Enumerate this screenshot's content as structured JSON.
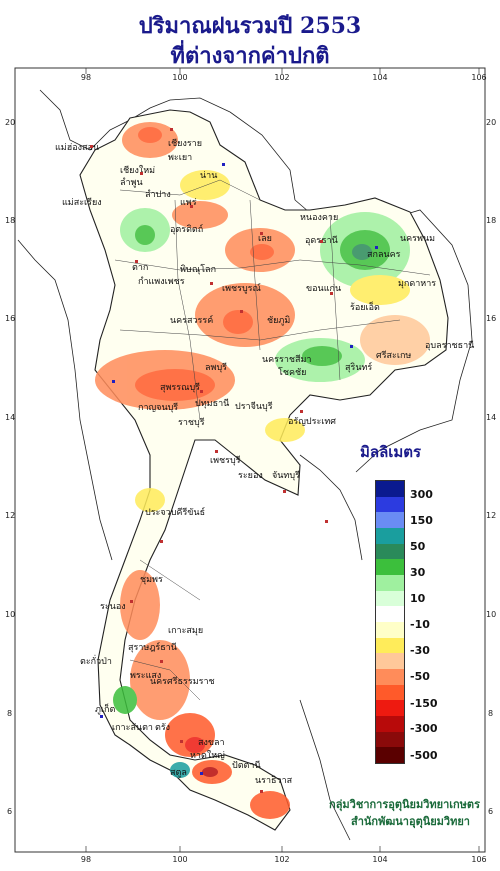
{
  "title": {
    "line1": "ปริมาณฝนรวมปี  2553",
    "line2": "ที่ต่างจากค่าปกติ"
  },
  "axes": {
    "longitude_ticks": [
      "98",
      "100",
      "102",
      "104",
      "106"
    ],
    "latitude_ticks": [
      "20",
      "18",
      "16",
      "14",
      "12",
      "10",
      "8",
      "6"
    ]
  },
  "legend": {
    "title": "มิลลิเมตร",
    "colors": [
      "#0a1a8f",
      "#2c3be0",
      "#6a8cf4",
      "#1a9e9e",
      "#2a8a5a",
      "#3cbf3c",
      "#9ff09f",
      "#d9ffd9",
      "#ffffff",
      "#ffffc8",
      "#ffec5a",
      "#ffc89a",
      "#ff8c5a",
      "#ff5a2a",
      "#ee1a10",
      "#b80a0a",
      "#8a0a0a",
      "#5a0000"
    ],
    "labels": [
      "300",
      "150",
      "50",
      "30",
      "10",
      "-10",
      "-30",
      "-50",
      "-150",
      "-300",
      "-500"
    ]
  },
  "places": [
    "เชียงราย",
    "แม่ฮ่องสอน",
    "พะเยา",
    "เชียงใหม่",
    "ลำพูน",
    "น่าน",
    "ลำปาง",
    "แพร่",
    "แม่สะเรียง",
    "อุตรดิตถ์",
    "เลย",
    "หนองคาย",
    "อุดรธานี",
    "สกลนคร",
    "นครพนม",
    "มุกดาหาร",
    "ตาก",
    "พิษณุโลก",
    "กำแพงเพชร",
    "เพชรบูรณ์",
    "ขอนแก่น",
    "นครสวรรค์",
    "ชัยภูมิ",
    "อุบลราชธานี",
    "ร้อยเอ็ด",
    "นครราชสีมา",
    "สุรินทร์",
    "ศรีสะเกษ",
    "โชคชัย",
    "กาญจนบุรี",
    "สุพรรณบุรี",
    "ลพบุรี",
    "ปทุมธานี",
    "ปราจีนบุรี",
    "อรัญประเทศ",
    "ราชบุรี",
    "เพชรบุรี",
    "ระยอง",
    "จันทบุรี",
    "ประจวบคีรีขันธ์",
    "ชุมพร",
    "ระนอง",
    "เกาะสมุย",
    "สุราษฎร์ธานี",
    "ตะกั่วป่า",
    "พระแสง",
    "นครศรีธรรมราช",
    "ภูเก็ต",
    "เกาะลันตา",
    "ตรัง",
    "สงขลา",
    "หาดใหญ่",
    "ปัตตานี",
    "นราธิวาส",
    "สตูล"
  ],
  "credits": {
    "line1": "กลุ่มวิชาการอุตุนิยมวิทยาเกษตร",
    "line2": "สำนักพัฒนาอุตุนิยมวิทยา"
  }
}
